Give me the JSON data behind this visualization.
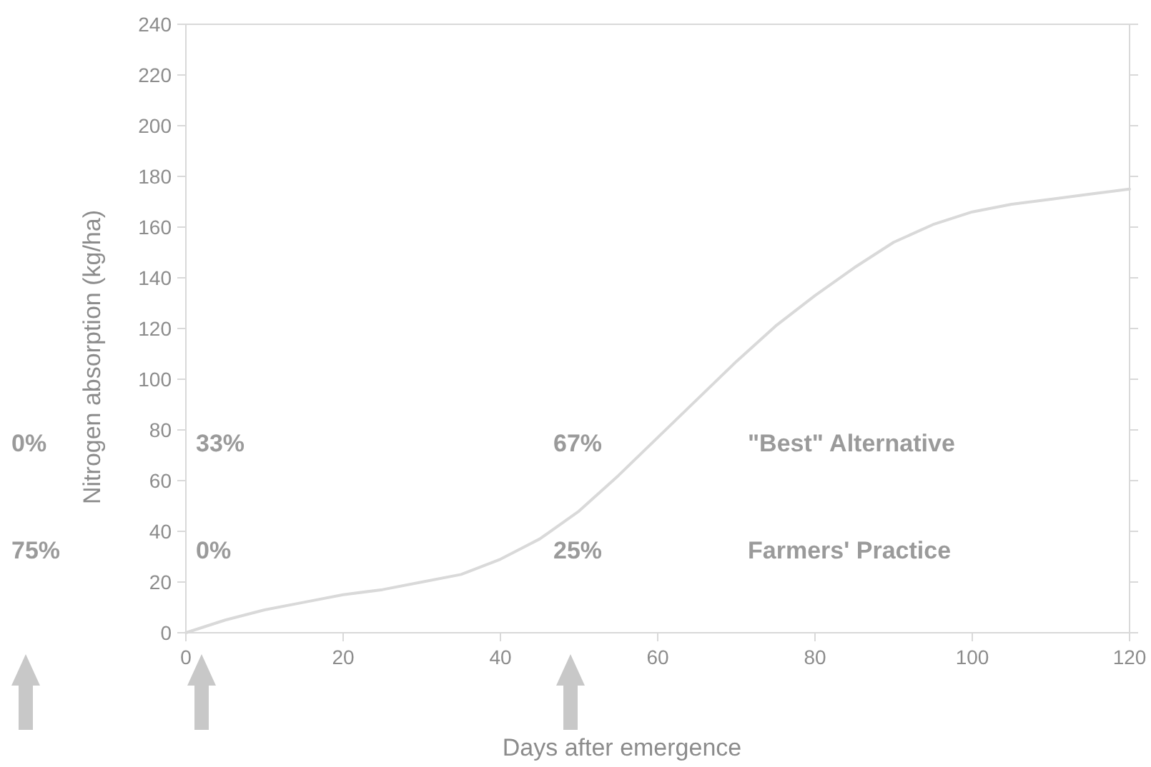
{
  "chart_data": {
    "type": "line",
    "xlabel": "Days after emergence",
    "ylabel": "Nitrogen absorption (kg/ha)",
    "x": [
      0,
      5,
      10,
      15,
      20,
      25,
      30,
      35,
      40,
      45,
      50,
      55,
      60,
      65,
      70,
      75,
      80,
      85,
      90,
      95,
      100,
      105,
      110,
      115,
      120
    ],
    "series": [
      {
        "color": "#d9d9d9",
        "values": [
          0,
          5,
          9,
          12,
          15,
          17,
          20,
          23,
          29,
          37,
          48,
          62,
          77,
          92,
          107,
          121,
          133,
          144,
          154,
          161,
          166,
          169,
          171,
          173,
          175
        ]
      }
    ],
    "xlim": [
      0,
      120
    ],
    "xticks": [
      0,
      20,
      40,
      60,
      80,
      100,
      120
    ],
    "ylim": [
      0,
      240
    ],
    "yticks": [
      0,
      20,
      40,
      60,
      80,
      100,
      120,
      140,
      160,
      180,
      200,
      220,
      240
    ],
    "grid": false,
    "marker": "none",
    "line_style": "solid",
    "annotations": [
      "0%",
      "75%",
      "33%",
      "0%",
      "67%",
      "25%",
      "\"Best\" Alternative",
      "Farmers' Practice"
    ]
  }
}
